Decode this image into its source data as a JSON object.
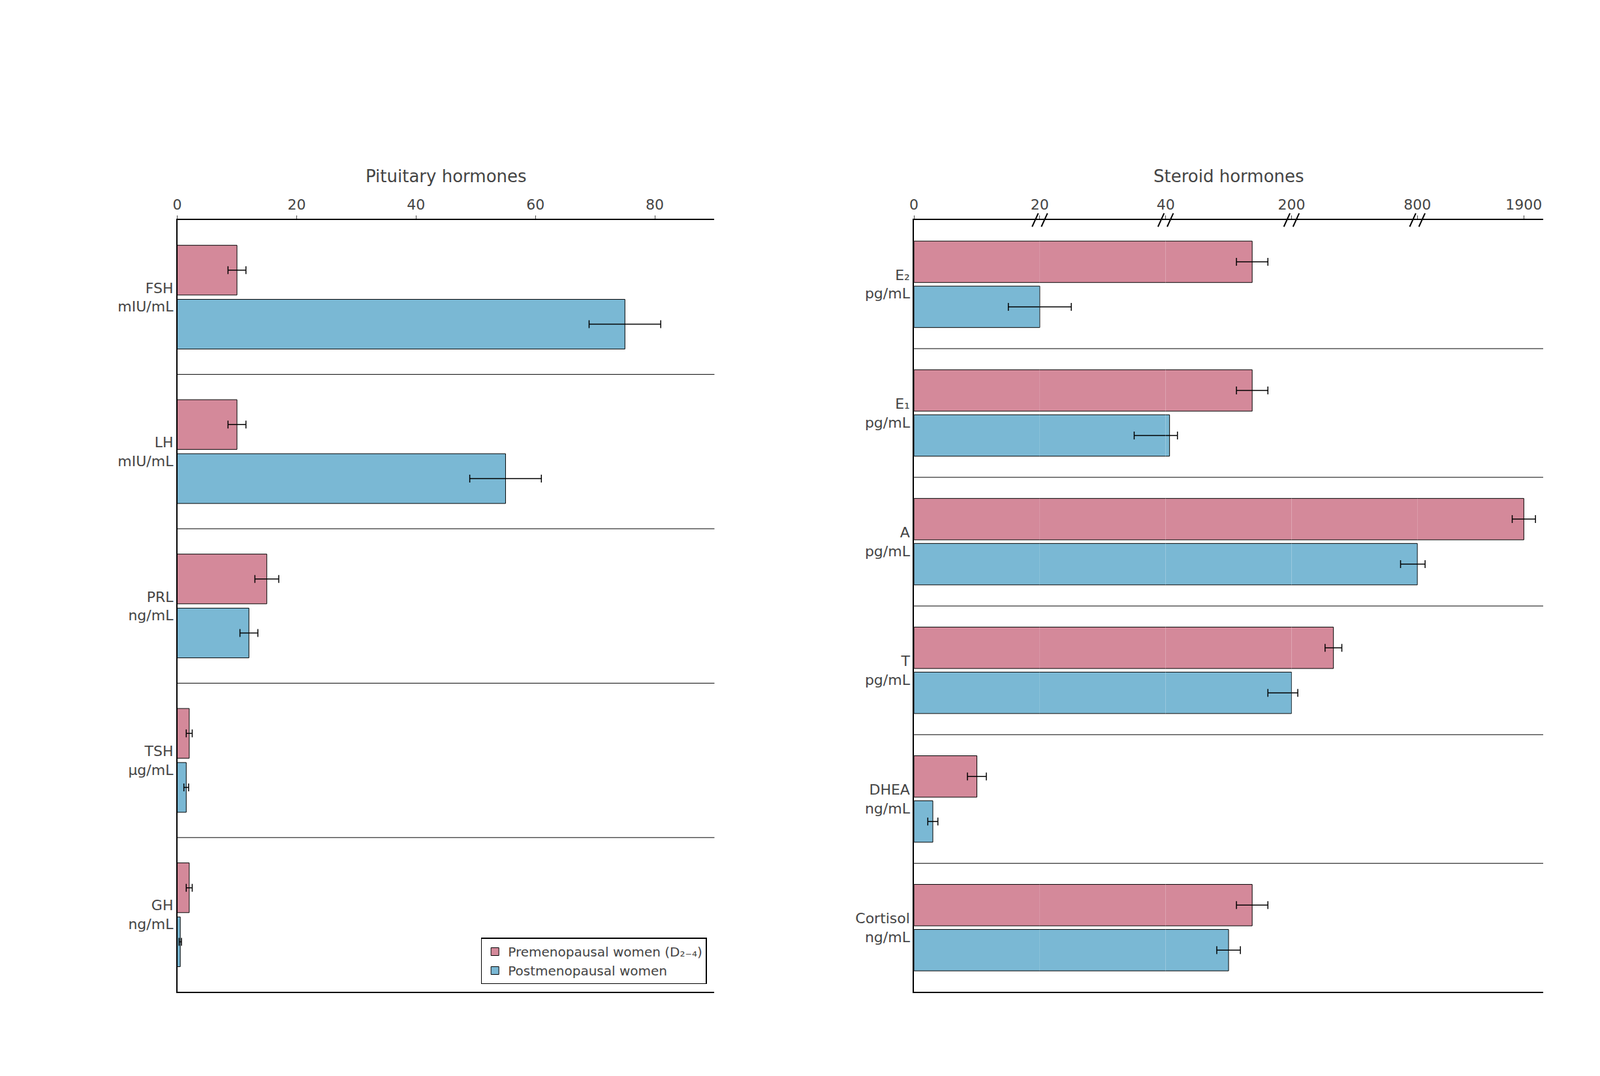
{
  "chart_data": [
    {
      "type": "bar",
      "orientation": "horizontal",
      "title": "Pituitary hormones",
      "categories": [
        "FSH\nmIU/mL",
        "LH\nmIU/mL",
        "PRL\nng/mL",
        "TSH\nμg/mL",
        "GH\nng/mL"
      ],
      "series": [
        {
          "name": "Premenopausal women (D₂₋₄)",
          "color": "#d4899a",
          "values": [
            10,
            10,
            15,
            2.0,
            2.0
          ],
          "errors": [
            1.5,
            1.5,
            2.0,
            0.5,
            0.5
          ]
        },
        {
          "name": "Postmenopausal women",
          "color": "#7ab8d4",
          "values": [
            75,
            55,
            12,
            1.5,
            0.5
          ],
          "errors": [
            6,
            6,
            1.5,
            0.4,
            0.2
          ]
        }
      ],
      "xlim": [
        0,
        90
      ],
      "xticks": [
        0,
        20,
        40,
        60,
        80
      ],
      "grid": false,
      "legend": "lower right"
    },
    {
      "type": "bar",
      "orientation": "horizontal",
      "title": "Steroid hormones",
      "categories": [
        "E₂\npg/mL",
        "E₁\npg/mL",
        "A\npg/mL",
        "T\npg/mL",
        "DHEA\nng/mL",
        "Cortisol\nng/mL"
      ],
      "series": [
        {
          "name": "Premenopausal women (D₂₋₄)",
          "color": "#d4899a",
          "values": [
            150,
            150,
            1900,
            400,
            10,
            150
          ],
          "errors": [
            20,
            20,
            120,
            40,
            1.5,
            20
          ]
        },
        {
          "name": "Postmenopausal women",
          "color": "#7ab8d4",
          "values": [
            20,
            45,
            800,
            200,
            3,
            120
          ],
          "errors": [
            5,
            10,
            80,
            30,
            0.8,
            15
          ]
        }
      ],
      "xlim": [
        0,
        2100
      ],
      "xticks": [
        0,
        20,
        40,
        200,
        800,
        1900
      ],
      "grid": false
    }
  ]
}
